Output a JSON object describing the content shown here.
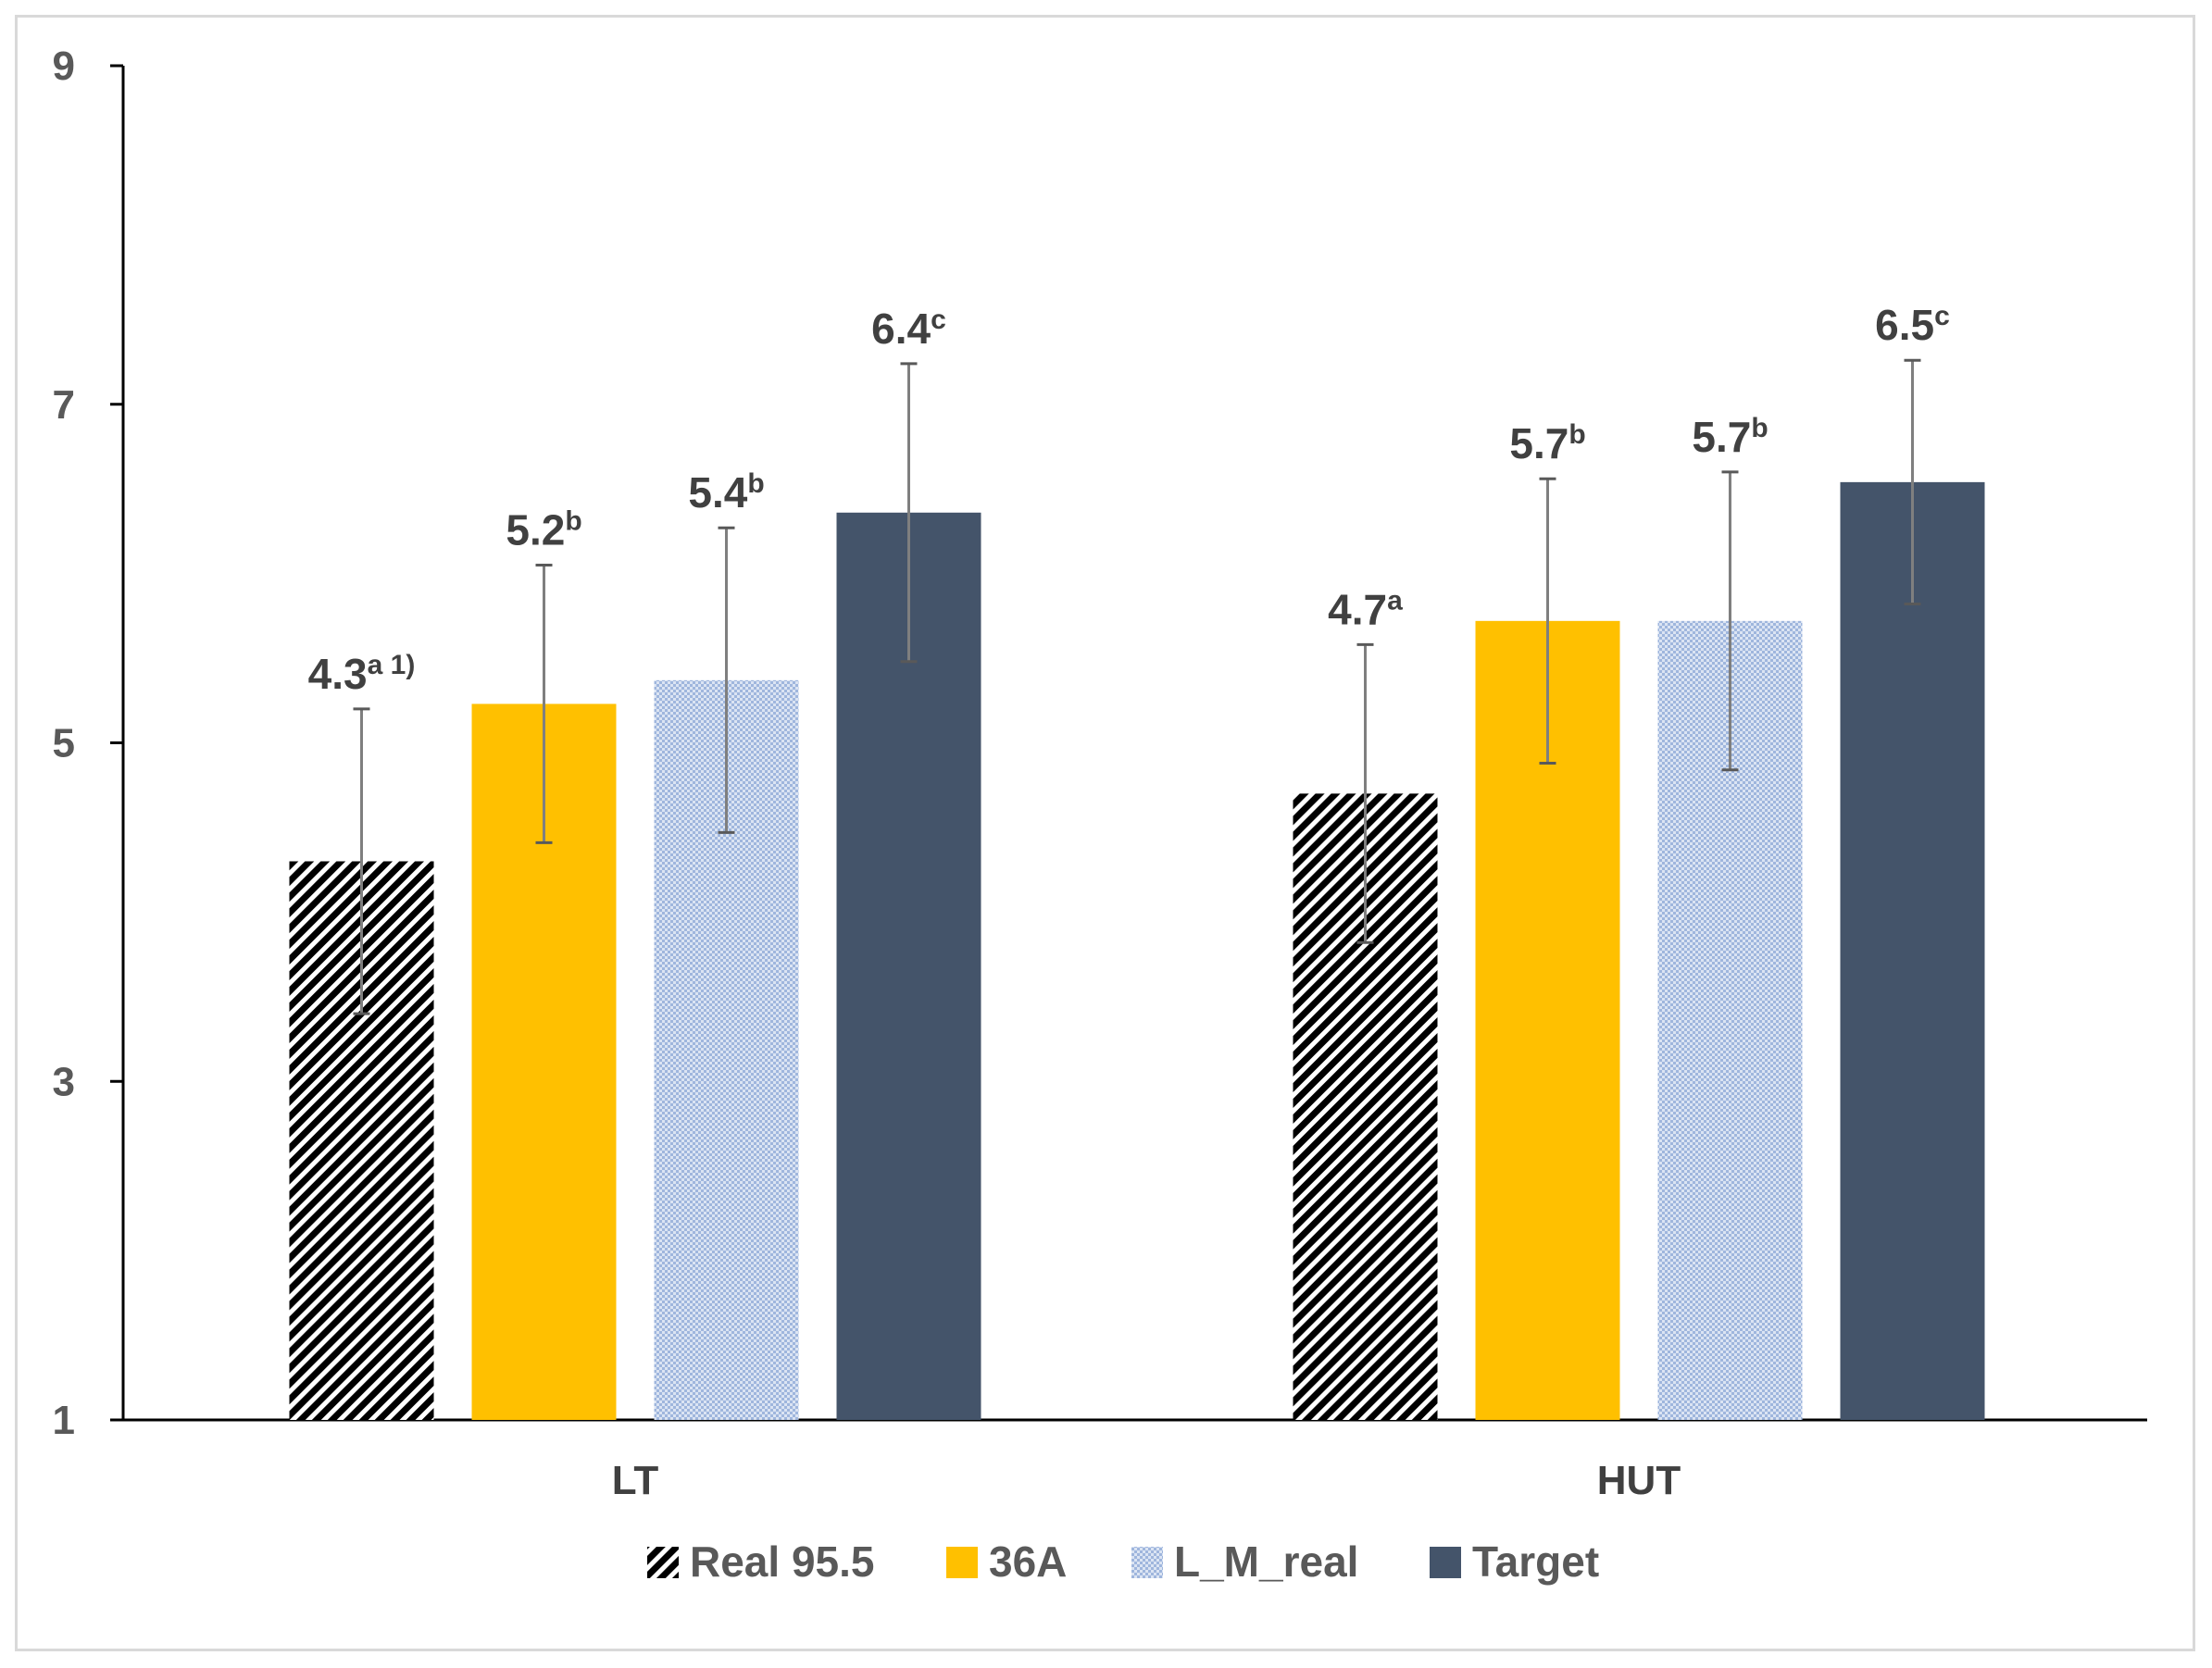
{
  "chart_data": {
    "type": "bar",
    "categories": [
      "LT",
      "HUT"
    ],
    "series": [
      {
        "name": "Real 95.5",
        "color": "#000000",
        "pattern": "hatch",
        "values": [
          4.3,
          4.7
        ],
        "errors": [
          0.9,
          0.88
        ],
        "labels": [
          "4.3",
          "4.7"
        ],
        "sups": [
          "a 1)",
          "a"
        ]
      },
      {
        "name": "36A",
        "color": "#FFC000",
        "pattern": "solid",
        "values": [
          5.23,
          5.72
        ],
        "errors": [
          0.82,
          0.84
        ],
        "labels": [
          "5.2",
          "5.7"
        ],
        "sups": [
          "b",
          "b"
        ]
      },
      {
        "name": "L_M_real",
        "color": "#B4C7E7",
        "pattern": "dots",
        "values": [
          5.37,
          5.72
        ],
        "errors": [
          0.9,
          0.88
        ],
        "labels": [
          "5.4",
          "5.7"
        ],
        "sups": [
          "b",
          "b"
        ]
      },
      {
        "name": "Target",
        "color": "#44546A",
        "pattern": "solid",
        "values": [
          6.36,
          6.54
        ],
        "errors": [
          0.88,
          0.72
        ],
        "labels": [
          "6.4",
          "6.5"
        ],
        "sups": [
          "c",
          "c"
        ]
      }
    ],
    "ylim": [
      1,
      9
    ],
    "yticks": [
      1,
      3,
      5,
      7,
      9
    ],
    "title": "",
    "xlabel": "",
    "ylabel": "",
    "legend_position": "bottom"
  }
}
